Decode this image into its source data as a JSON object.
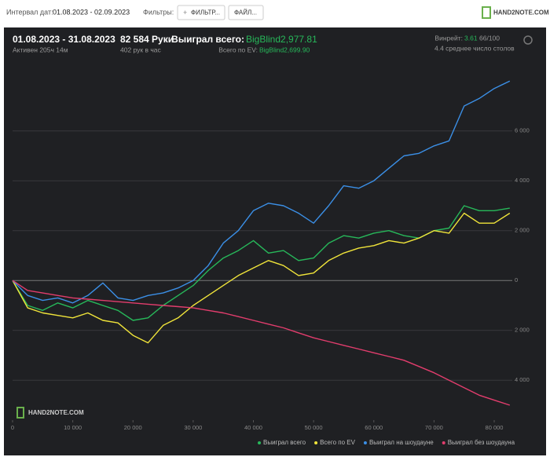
{
  "topbar": {
    "interval_label": "Интервал дат:",
    "interval": "01.08.2023 - 02.09.2023",
    "filters_label": "Фильтры:",
    "filter_button": "ФИЛЬТР...",
    "file_button": "ФАЙЛ...",
    "logo": "HAND2NOTE.COM"
  },
  "header": {
    "period": "01.08.2023 - 31.08.2023",
    "active": "Активен 205ч 14м",
    "hands": "82 584 Руки",
    "hands_per_hour": "402 рук в час",
    "won_label": "Выиграл всего:",
    "won": "BigBlind2,977.81",
    "ev_label": "Всего по EV:",
    "ev": "BigBlind2,699.90",
    "winrate_label": "Винрейт:",
    "winrate": "3.61",
    "winrate_unit": "66/100",
    "tables": "4.4 среднее число столов"
  },
  "chart_data": {
    "type": "line",
    "watermark": "HAND2NOTE.COM",
    "x": [
      0,
      2500,
      5000,
      7500,
      10000,
      12500,
      15000,
      17500,
      20000,
      22500,
      25000,
      27500,
      30000,
      32500,
      35000,
      37500,
      40000,
      42500,
      45000,
      47500,
      50000,
      52500,
      55000,
      57500,
      60000,
      62500,
      65000,
      67500,
      70000,
      72500,
      75000,
      77500,
      80000,
      82584
    ],
    "series": [
      {
        "name": "Выиграл всего",
        "color": "#27b85a",
        "values": [
          0,
          -1000,
          -1200,
          -900,
          -1100,
          -800,
          -1000,
          -1200,
          -1600,
          -1500,
          -1000,
          -600,
          -200,
          400,
          900,
          1200,
          1600,
          1100,
          1200,
          800,
          900,
          1500,
          1800,
          1700,
          1900,
          2000,
          1800,
          1700,
          2000,
          2100,
          3000,
          2800,
          2800,
          2900
        ]
      },
      {
        "name": "Всего по EV",
        "color": "#f0e43a",
        "values": [
          0,
          -1100,
          -1300,
          -1400,
          -1500,
          -1300,
          -1600,
          -1700,
          -2200,
          -2500,
          -1800,
          -1500,
          -1000,
          -600,
          -200,
          200,
          500,
          800,
          600,
          200,
          300,
          800,
          1100,
          1300,
          1400,
          1600,
          1500,
          1700,
          2000,
          1900,
          2700,
          2300,
          2300,
          2700
        ]
      },
      {
        "name": "Выиграл на шоудауне",
        "color": "#3b8fe6",
        "values": [
          0,
          -600,
          -800,
          -700,
          -900,
          -600,
          -100,
          -700,
          -800,
          -600,
          -500,
          -300,
          0,
          600,
          1500,
          2000,
          2800,
          3100,
          3000,
          2700,
          2300,
          3000,
          3800,
          3700,
          4000,
          4500,
          5000,
          5100,
          5400,
          5600,
          7000,
          7300,
          7700,
          8000
        ]
      },
      {
        "name": "Выиграл без шоудауна",
        "color": "#e23d6d",
        "values": [
          0,
          -400,
          -500,
          -600,
          -700,
          -750,
          -800,
          -850,
          -900,
          -950,
          -1000,
          -1050,
          -1100,
          -1200,
          -1300,
          -1450,
          -1600,
          -1750,
          -1900,
          -2100,
          -2300,
          -2450,
          -2600,
          -2750,
          -2900,
          -3050,
          -3200,
          -3450,
          -3700,
          -4000,
          -4300,
          -4600,
          -4800,
          -5000
        ]
      }
    ],
    "xlim": [
      0,
      83000
    ],
    "ylim": [
      -5600,
      8700
    ],
    "xticks": [
      0,
      {
        "value": 10000,
        "label": "10 000"
      },
      {
        "value": 20000,
        "label": "20 000"
      },
      {
        "value": 30000,
        "label": "30 000"
      },
      {
        "value": 40000,
        "label": "40 000"
      },
      {
        "value": 50000,
        "label": "50 000"
      },
      {
        "value": 60000,
        "label": "60 000"
      },
      {
        "value": 70000,
        "label": "70 000"
      },
      {
        "value": 80000,
        "label": "80 000"
      }
    ],
    "yticks": [
      {
        "value": -4000,
        "label": "4 000"
      },
      {
        "value": -2000,
        "label": "2 000"
      },
      0,
      {
        "value": 2000,
        "label": "2 000"
      },
      {
        "value": 4000,
        "label": "4 000"
      },
      {
        "value": 6000,
        "label": "6 000"
      }
    ],
    "grid": true
  }
}
